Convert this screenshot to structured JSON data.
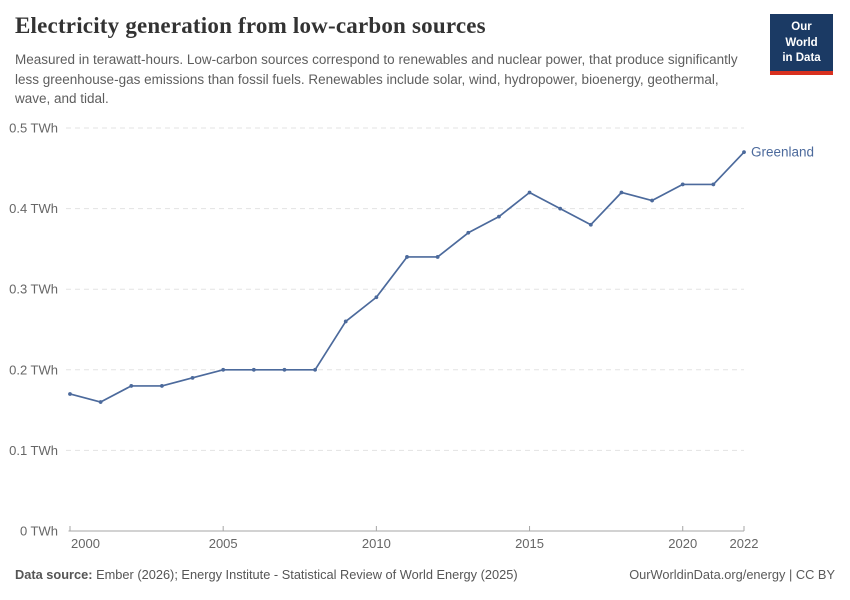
{
  "header": {
    "title": "Electricity generation from low-carbon sources",
    "subtitle": "Measured in terawatt-hours. Low-carbon sources correspond to renewables and nuclear power, that produce significantly less greenhouse-gas emissions than fossil fuels. Renewables include solar, wind, hydropower, bioenergy, geothermal, wave, and tidal.",
    "logo": {
      "line1": "Our World",
      "line2": "in Data",
      "bg_color": "#1b3a64",
      "accent_color": "#d8301f"
    }
  },
  "chart_data": {
    "type": "line",
    "title": "Electricity generation from low-carbon sources",
    "xlabel": "",
    "ylabel": "",
    "unit": "TWh",
    "grid": "horizontal-dashed",
    "legend": "end-of-line-label",
    "ylim": [
      0,
      0.5
    ],
    "x": [
      2000,
      2001,
      2002,
      2003,
      2004,
      2005,
      2006,
      2007,
      2008,
      2009,
      2010,
      2011,
      2012,
      2013,
      2014,
      2015,
      2016,
      2017,
      2018,
      2019,
      2020,
      2021,
      2022
    ],
    "series": [
      {
        "name": "Greenland",
        "color": "#4c6a9c",
        "values": [
          0.17,
          0.16,
          0.18,
          0.18,
          0.19,
          0.2,
          0.2,
          0.2,
          0.2,
          0.26,
          0.29,
          0.34,
          0.34,
          0.37,
          0.39,
          0.42,
          0.4,
          0.38,
          0.42,
          0.41,
          0.43,
          0.43,
          0.47
        ]
      }
    ],
    "yticks": [
      {
        "value": 0,
        "label": "0 TWh"
      },
      {
        "value": 0.1,
        "label": "0.1 TWh"
      },
      {
        "value": 0.2,
        "label": "0.2 TWh"
      },
      {
        "value": 0.3,
        "label": "0.3 TWh"
      },
      {
        "value": 0.4,
        "label": "0.4 TWh"
      },
      {
        "value": 0.5,
        "label": "0.5 TWh"
      }
    ],
    "xticks": [
      {
        "value": 2000,
        "label": "2000"
      },
      {
        "value": 2005,
        "label": "2005"
      },
      {
        "value": 2010,
        "label": "2010"
      },
      {
        "value": 2015,
        "label": "2015"
      },
      {
        "value": 2020,
        "label": "2020"
      },
      {
        "value": 2022,
        "label": "2022"
      }
    ]
  },
  "footer": {
    "datasource_label": "Data source:",
    "datasource_text": " Ember (2026); Energy Institute - Statistical Review of World Energy (2025)",
    "link_text": "OurWorldinData.org/energy | CC BY"
  }
}
